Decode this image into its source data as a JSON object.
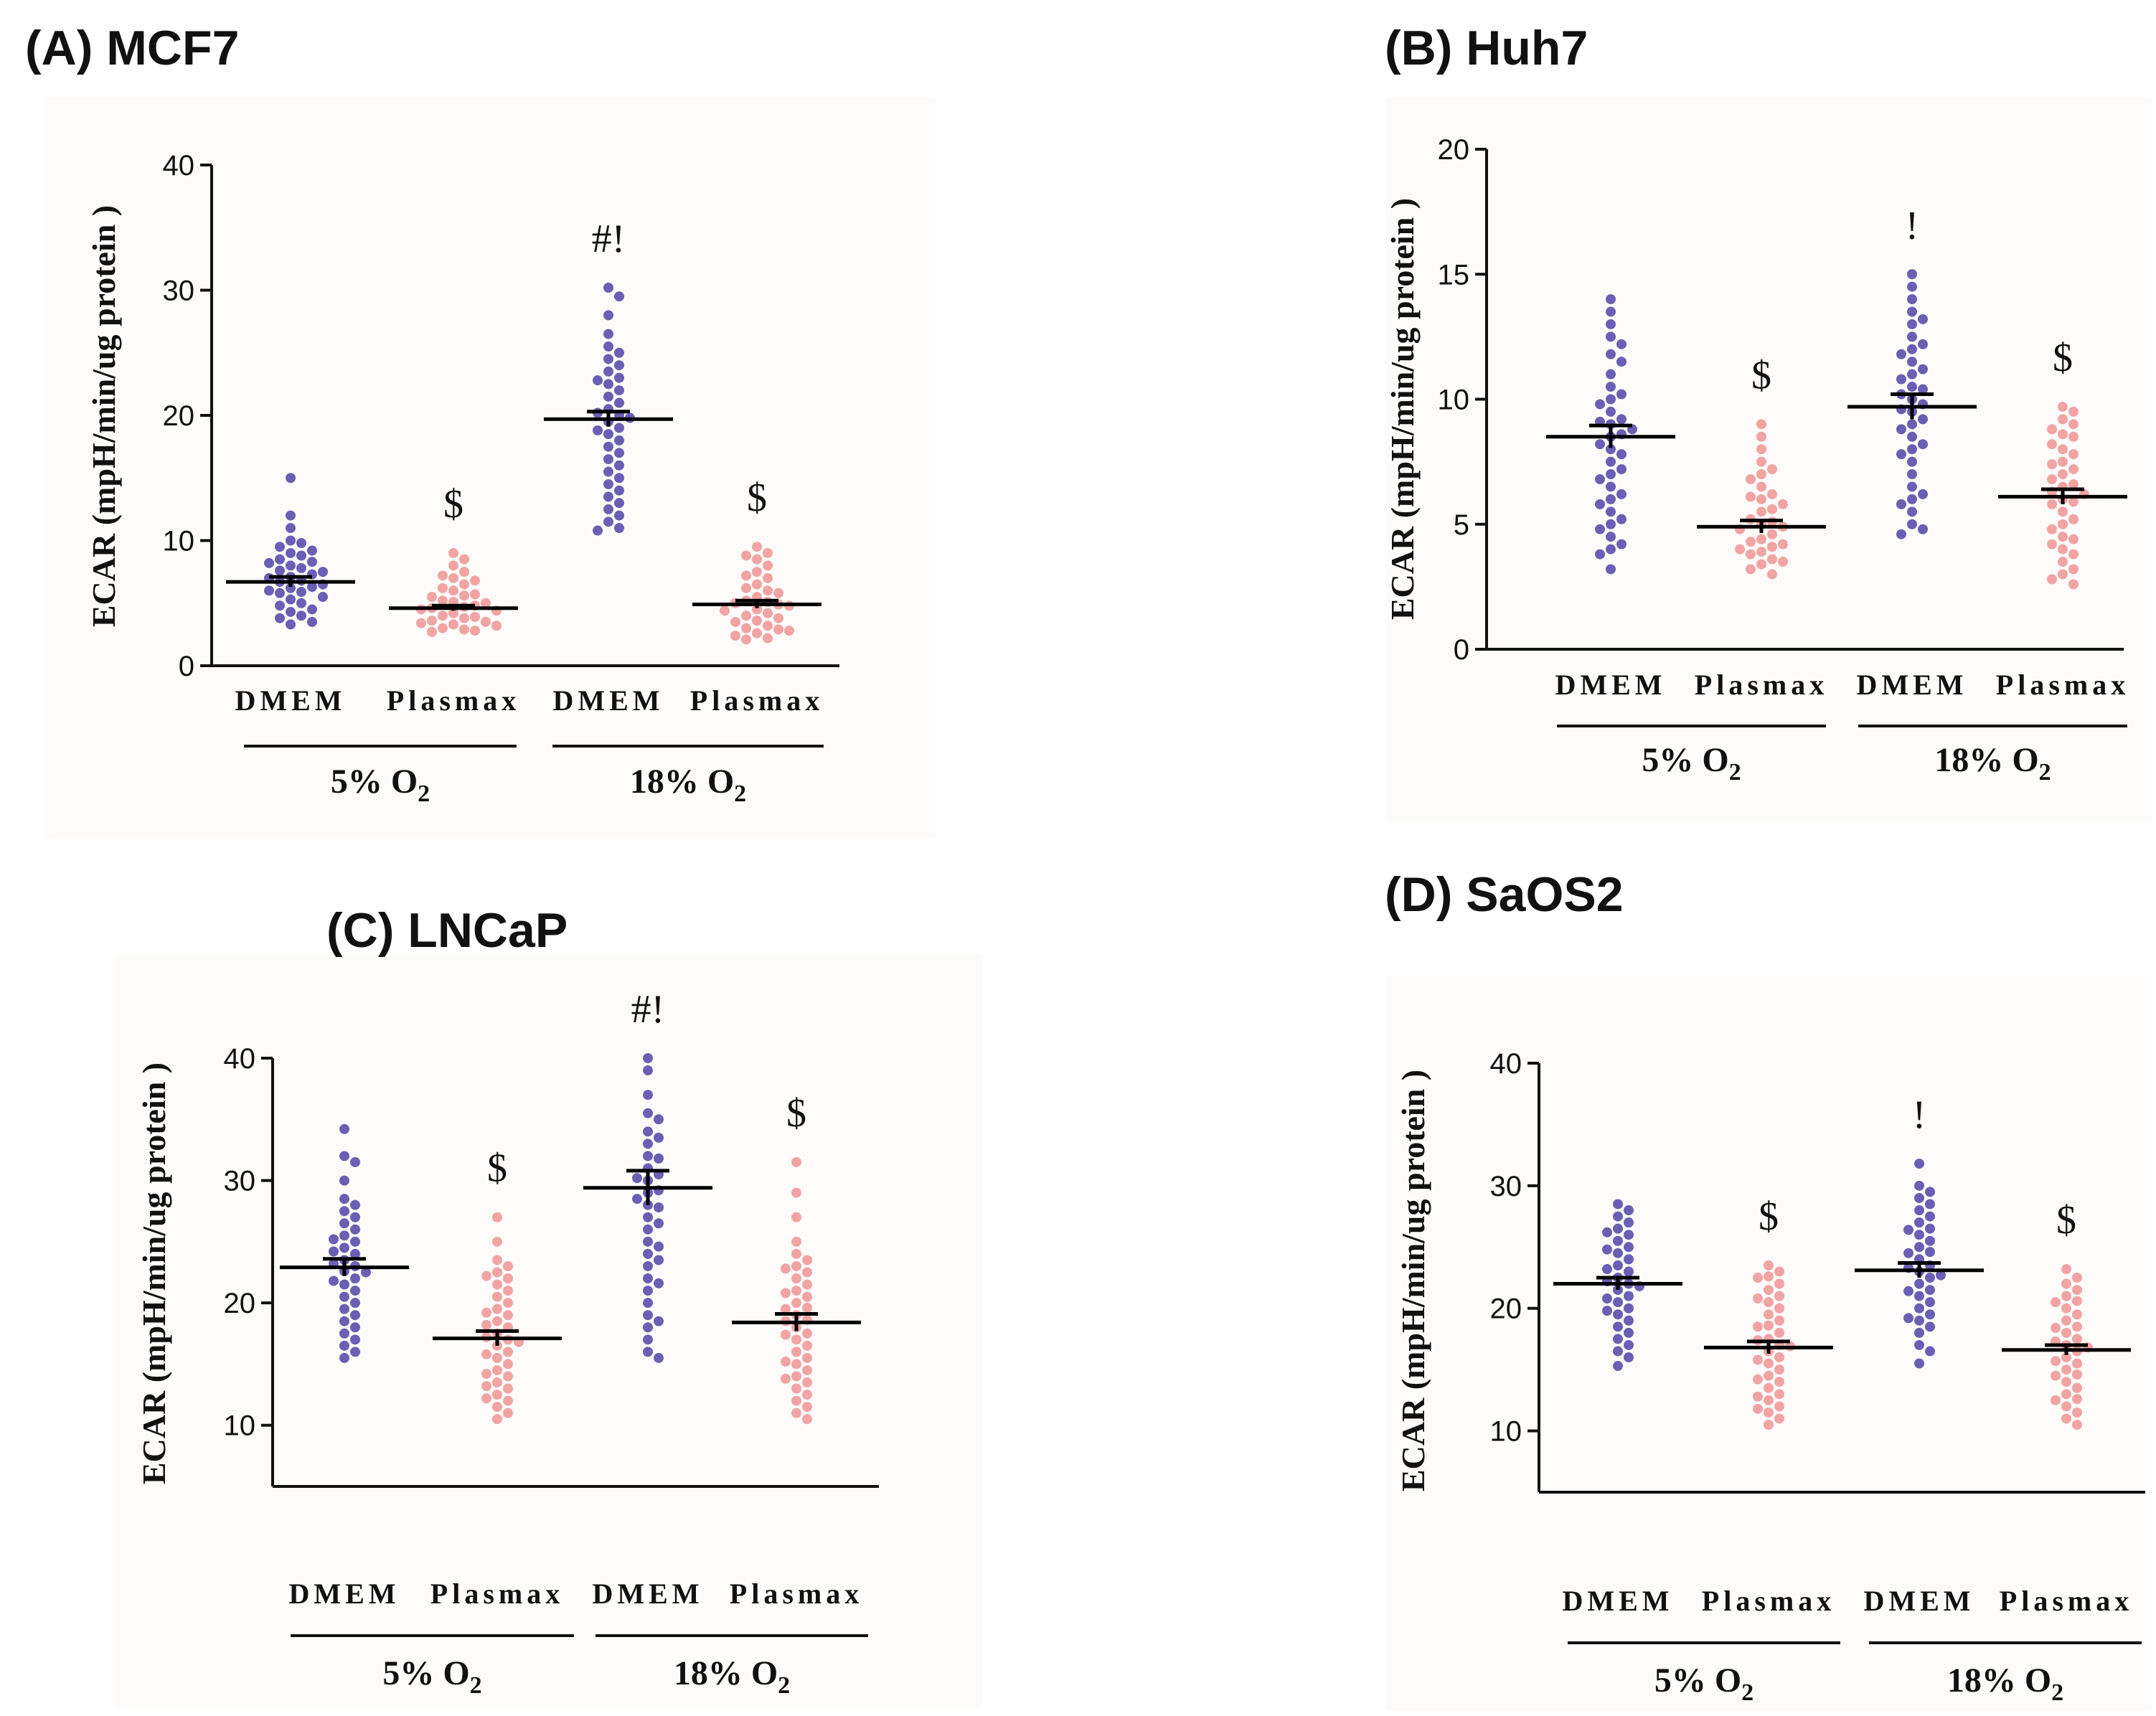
{
  "colors": {
    "dmem": "#6a5fb4",
    "plasmax": "#f2a3a3",
    "mean": "#000000",
    "panel_bg": "#fdfcfa"
  },
  "chart_data": [
    {
      "type": "scatter",
      "title": "(A) MCF7",
      "ylabel": "ECAR (mpH/min/ug protein )",
      "ylim": [
        0,
        40
      ],
      "yticks": [
        0,
        10,
        20,
        30,
        40
      ],
      "categories": [
        "DMEM",
        "Plasmax",
        "DMEM",
        "Plasmax"
      ],
      "groups": [
        {
          "label": "5% O",
          "sub": "2"
        },
        {
          "label": "18% O",
          "sub": "2"
        }
      ],
      "annotations": [
        "",
        "$",
        "#!",
        "$"
      ],
      "series": [
        {
          "name": "DMEM 5% O2",
          "mean": 6.7,
          "sem": 0.4,
          "values": [
            15,
            12,
            11,
            10,
            9.8,
            9.5,
            9.2,
            9,
            8.8,
            8.5,
            8.3,
            8,
            7.8,
            7.5,
            7.3,
            7,
            6.8,
            6.5,
            6.3,
            6,
            5.8,
            5.5,
            5.3,
            5,
            4.8,
            4.5,
            4.3,
            4,
            3.8,
            3.5,
            3.3,
            6.7,
            7.1,
            6.2,
            5.9,
            7.6,
            8.2
          ]
        },
        {
          "name": "Plasmax 5% O2",
          "mean": 4.6,
          "sem": 0.2,
          "values": [
            9,
            8.5,
            8,
            7.5,
            7,
            6.5,
            6.2,
            6,
            5.7,
            5.5,
            5.2,
            5,
            4.8,
            4.6,
            4.4,
            4.2,
            4,
            3.8,
            3.6,
            3.4,
            3.2,
            3,
            2.9,
            2.8,
            4.5,
            4.7,
            3.9,
            3.5,
            5.1,
            5.6,
            6.8,
            7.2,
            3.3,
            2.7
          ]
        },
        {
          "name": "DMEM 18% O2",
          "mean": 19.7,
          "sem": 0.6,
          "values": [
            30.2,
            29.5,
            28,
            26.5,
            25.5,
            25,
            24.5,
            24,
            23.5,
            23,
            22.5,
            22,
            21.5,
            21,
            20.5,
            20,
            19.5,
            19,
            18.5,
            18,
            17.5,
            17,
            16.5,
            16,
            15.5,
            15,
            14.5,
            14,
            13.5,
            13,
            12.5,
            12,
            11.5,
            11,
            10.8,
            20.2,
            19.8,
            18.8,
            22.8
          ]
        },
        {
          "name": "Plasmax 18% O2",
          "mean": 4.9,
          "sem": 0.3,
          "values": [
            9.5,
            9,
            8.5,
            8,
            7.5,
            7,
            6.5,
            6,
            5.8,
            5.5,
            5.2,
            5,
            4.8,
            4.5,
            4.2,
            4,
            3.8,
            3.5,
            3.2,
            3,
            2.8,
            2.6,
            2.4,
            2.2,
            2.1,
            4.9,
            5.1,
            6.2,
            7.2,
            3.6,
            4.4,
            8.8,
            2.9
          ]
        }
      ]
    },
    {
      "type": "scatter",
      "title": "(B) Huh7",
      "ylabel": "ECAR (mpH/min/ug protein )",
      "ylim": [
        0,
        20
      ],
      "yticks": [
        0,
        5,
        10,
        15,
        20
      ],
      "categories": [
        "DMEM",
        "Plasmax",
        "DMEM",
        "Plasmax"
      ],
      "groups": [
        {
          "label": "5% O",
          "sub": "2"
        },
        {
          "label": "18% O",
          "sub": "2"
        }
      ],
      "annotations": [
        "",
        "$",
        "!",
        "$"
      ],
      "series": [
        {
          "name": "DMEM 5% O2",
          "mean": 8.5,
          "sem": 0.45,
          "values": [
            14,
            13.5,
            13,
            12.5,
            12.2,
            11.8,
            11.5,
            11,
            10.5,
            10.2,
            10,
            9.8,
            9.5,
            9.2,
            9,
            8.8,
            8.5,
            8.2,
            8,
            7.8,
            7.5,
            7.2,
            7,
            6.8,
            6.5,
            6.2,
            6,
            5.8,
            5.5,
            5.2,
            5,
            4.8,
            4.5,
            4.2,
            4,
            3.8,
            3.2,
            8.6,
            9.1
          ]
        },
        {
          "name": "Plasmax 5% O2",
          "mean": 4.9,
          "sem": 0.25,
          "values": [
            9,
            8.5,
            8,
            7.5,
            7,
            6.8,
            6.5,
            6.2,
            6,
            5.8,
            5.5,
            5.2,
            5,
            4.8,
            4.6,
            4.4,
            4.2,
            4,
            3.8,
            3.6,
            3.4,
            3.2,
            3,
            4.9,
            5.1,
            4.3,
            3.9,
            5.6,
            6.1,
            4.1,
            3.5,
            7.2
          ]
        },
        {
          "name": "DMEM 18% O2",
          "mean": 9.7,
          "sem": 0.5,
          "values": [
            15,
            14.5,
            14,
            13.5,
            13,
            12.5,
            12,
            11.8,
            11.5,
            11,
            10.8,
            10.5,
            10.2,
            10,
            9.8,
            9.5,
            9.2,
            9,
            8.8,
            8.5,
            8.2,
            8,
            7.5,
            7,
            6.5,
            6,
            5.5,
            5,
            4.8,
            4.6,
            12.2,
            11.2,
            9.6,
            7.8,
            6.2,
            13.2,
            10.4,
            5.8
          ]
        },
        {
          "name": "Plasmax 18% O2",
          "mean": 6.1,
          "sem": 0.3,
          "values": [
            9.7,
            9.5,
            9.2,
            9,
            8.8,
            8.5,
            8.2,
            8,
            7.8,
            7.5,
            7.2,
            7,
            6.8,
            6.5,
            6.2,
            6,
            5.8,
            5.5,
            5.2,
            5,
            4.8,
            4.5,
            4.2,
            4,
            3.8,
            3.5,
            3.2,
            3,
            2.8,
            2.6,
            6.3,
            6.6,
            5.9,
            7.4,
            4.4,
            8.6
          ]
        }
      ]
    },
    {
      "type": "scatter",
      "title": "(C) LNCaP",
      "ylabel": "ECAR (mpH/min/ug protein )",
      "ylim": [
        5,
        40
      ],
      "yticks": [
        10,
        20,
        30,
        40
      ],
      "categories": [
        "DMEM",
        "Plasmax",
        "DMEM",
        "Plasmax"
      ],
      "groups": [
        {
          "label": "5% O",
          "sub": "2"
        },
        {
          "label": "18% O",
          "sub": "2"
        }
      ],
      "annotations": [
        "",
        "$",
        "#!",
        "$"
      ],
      "series": [
        {
          "name": "DMEM 5% O2",
          "mean": 22.9,
          "sem": 0.7,
          "values": [
            34.2,
            32,
            31.5,
            30,
            28.5,
            28,
            27.5,
            27,
            26.5,
            26,
            25.5,
            25,
            24.5,
            24,
            23.5,
            23,
            22.5,
            22,
            21.5,
            21,
            20.5,
            20,
            19.5,
            19,
            18.5,
            18,
            17.5,
            17,
            16.5,
            16,
            15.5,
            23.2,
            22.6,
            24.2,
            21.8,
            25.2
          ]
        },
        {
          "name": "Plasmax 5% O2",
          "mean": 17.1,
          "sem": 0.6,
          "values": [
            27,
            25,
            23.5,
            23,
            22.5,
            22,
            21.5,
            21,
            20.5,
            20,
            19.5,
            19,
            18.5,
            18,
            17.5,
            17,
            16.5,
            16,
            15.5,
            15,
            14.5,
            14,
            13.5,
            13,
            12.5,
            12,
            11.5,
            11,
            10.5,
            17.2,
            16.8,
            18.2,
            15.8,
            14.2,
            12.2,
            22.2,
            19.2,
            13.2
          ]
        },
        {
          "name": "DMEM 18% O2",
          "mean": 29.4,
          "sem": 1.4,
          "values": [
            40,
            39,
            37,
            35.5,
            35,
            34,
            33.5,
            33,
            32,
            31,
            30.5,
            30,
            29,
            28.5,
            28,
            27,
            26.5,
            26,
            25,
            24,
            23.5,
            23,
            22,
            21,
            20,
            19,
            18.5,
            18,
            17,
            16,
            15.5,
            29.2,
            30.2,
            27.8,
            31.8,
            24.6,
            21.6
          ]
        },
        {
          "name": "Plasmax 18% O2",
          "mean": 18.4,
          "sem": 0.7,
          "values": [
            31.5,
            29,
            27,
            25,
            24,
            23.5,
            23,
            22.5,
            22,
            21.5,
            21,
            20.5,
            20,
            19.5,
            19,
            18.5,
            18,
            17.5,
            17,
            16.5,
            16,
            15.5,
            15,
            14.5,
            14,
            13.5,
            13,
            12.5,
            12,
            11.5,
            11,
            10.5,
            18.6,
            19.6,
            17.4,
            20.8,
            15.2,
            22.8,
            13.8
          ]
        }
      ]
    },
    {
      "type": "scatter",
      "title": "(D) SaOS2",
      "ylabel": "ECAR (mpH/min/ug protein )",
      "ylim": [
        5,
        40
      ],
      "yticks": [
        10,
        20,
        30,
        40
      ],
      "categories": [
        "DMEM",
        "Plasmax",
        "DMEM",
        "Plasmax"
      ],
      "groups": [
        {
          "label": "5% O",
          "sub": "2"
        },
        {
          "label": "18% O",
          "sub": "2"
        }
      ],
      "annotations": [
        "",
        "$",
        "!",
        "$"
      ],
      "series": [
        {
          "name": "DMEM 5% O2",
          "mean": 22,
          "sem": 0.5,
          "values": [
            28.5,
            28,
            27.5,
            27,
            26.5,
            26,
            25.5,
            25,
            24.5,
            24,
            23.5,
            23,
            22.5,
            22,
            21.5,
            21,
            20.5,
            20,
            19.5,
            19,
            18.5,
            18,
            17.5,
            17,
            16.5,
            16,
            15.3,
            22.2,
            21.8,
            23.2,
            20.8,
            24.8,
            19.8,
            26.2
          ]
        },
        {
          "name": "Plasmax 5% O2",
          "mean": 16.8,
          "sem": 0.5,
          "values": [
            23.5,
            23,
            22.5,
            22,
            21.5,
            21,
            20.5,
            20,
            19.5,
            19,
            18.5,
            18,
            17.5,
            17,
            16.5,
            16,
            15.5,
            15,
            14.5,
            14,
            13.5,
            13,
            12.5,
            12,
            11.5,
            11,
            10.5,
            16.9,
            17.4,
            15.8,
            18.6,
            14.2,
            12.8,
            20.8,
            22.6,
            11.8
          ]
        },
        {
          "name": "DMEM 18% O2",
          "mean": 23.1,
          "sem": 0.6,
          "values": [
            31.8,
            30,
            29.5,
            29,
            28.5,
            28,
            27.5,
            27,
            26.5,
            26,
            25.5,
            25,
            24.5,
            24,
            23.5,
            23,
            22.5,
            22,
            21.5,
            21,
            20.5,
            20,
            19.5,
            19,
            18.5,
            18,
            17,
            16.5,
            15.5,
            23.3,
            22.7,
            24.6,
            21.4,
            26.4,
            19.2
          ]
        },
        {
          "name": "Plasmax 18% O2",
          "mean": 16.6,
          "sem": 0.4,
          "values": [
            23.2,
            22.5,
            22,
            21.5,
            21,
            20.5,
            20,
            19.5,
            19,
            18.5,
            18,
            17.5,
            17,
            16.5,
            16,
            15.5,
            15,
            14.5,
            14,
            13.5,
            13,
            12.5,
            12,
            11.5,
            11,
            10.5,
            16.8,
            17.3,
            15.7,
            18.4,
            14.6,
            20.6,
            12.6
          ]
        }
      ]
    }
  ]
}
